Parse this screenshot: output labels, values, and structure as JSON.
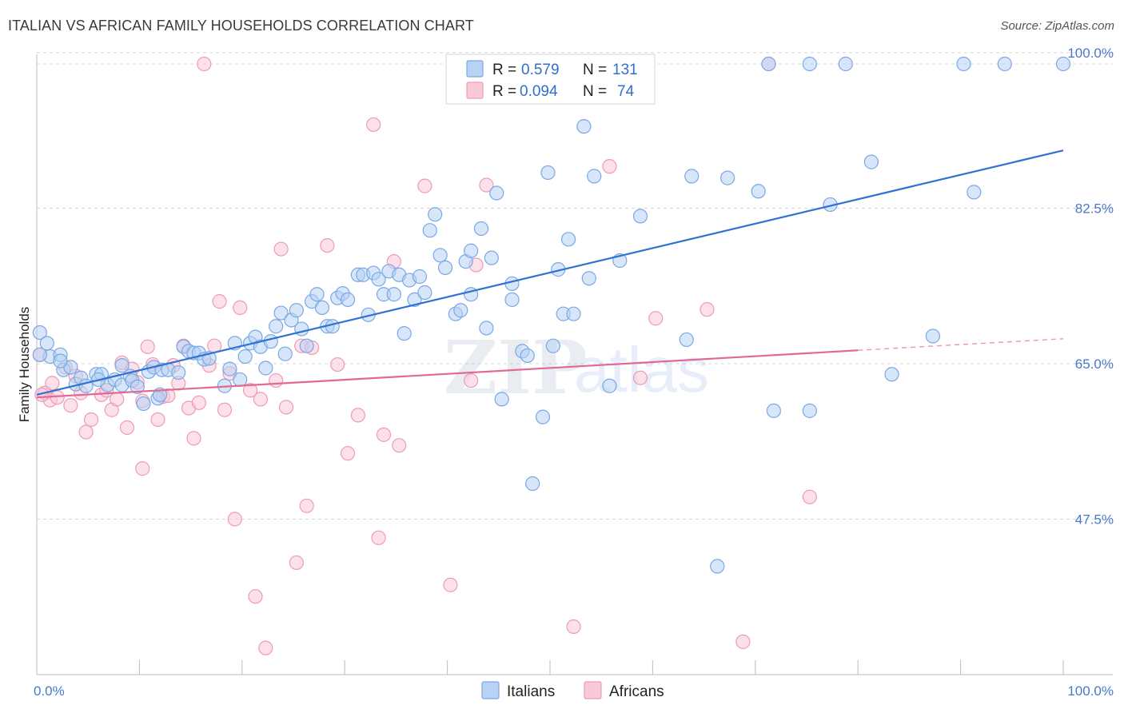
{
  "title": "ITALIAN VS AFRICAN FAMILY HOUSEHOLDS CORRELATION CHART",
  "source": "Source: ZipAtlas.com",
  "watermark": {
    "zip": "ZIP",
    "atlas": "atlas"
  },
  "colors": {
    "italian_fill": "#b7d2f3",
    "italian_stroke": "#7aa8e6",
    "italian_line": "#2f72d2",
    "african_fill": "#f9c9d8",
    "african_stroke": "#ee9bb6",
    "african_line": "#e06a93",
    "grid": "#d8d8d8",
    "tick_text": "#4a78c8"
  },
  "legend": {
    "rows": [
      {
        "r_label": "R =",
        "r_value": "0.579",
        "n_label": "N =",
        "n_value": "131"
      },
      {
        "r_label": "R =",
        "r_value": "0.094",
        "n_label": "N =",
        "n_value": "74"
      }
    ]
  },
  "chart_data": {
    "type": "scatter",
    "title": "ITALIAN VS AFRICAN FAMILY HOUSEHOLDS CORRELATION CHART",
    "xlabel": "",
    "ylabel": "Family Households",
    "xlim": [
      0,
      100
    ],
    "ylim": [
      30,
      100
    ],
    "x_tick_labels": [
      "0.0%",
      "100.0%"
    ],
    "y_ticks": [
      47.5,
      65.0,
      82.5,
      100.0
    ],
    "y_tick_labels": [
      "47.5%",
      "65.0%",
      "82.5%",
      "100.0%"
    ],
    "grid": true,
    "legend_position": "top-center",
    "series": [
      {
        "name": "Italians",
        "r": 0.579,
        "n": 131,
        "trend": {
          "x": [
            0,
            100
          ],
          "y": [
            61.5,
            89.0
          ]
        },
        "points": [
          [
            0.3,
            68.5
          ],
          [
            1,
            67.3
          ],
          [
            1.3,
            65.8
          ],
          [
            2.3,
            66.0
          ],
          [
            2.6,
            64.3
          ],
          [
            3.3,
            64.6
          ],
          [
            3.8,
            62.7
          ],
          [
            4.3,
            63.4
          ],
          [
            4.8,
            62.5
          ],
          [
            5.8,
            63.8
          ],
          [
            6.3,
            63.8
          ],
          [
            6.9,
            62.6
          ],
          [
            7.6,
            63.2
          ],
          [
            8.3,
            62.6
          ],
          [
            8.3,
            64.8
          ],
          [
            9.1,
            63.6
          ],
          [
            9.3,
            63.1
          ],
          [
            9.8,
            62.4
          ],
          [
            10.4,
            60.5
          ],
          [
            10.9,
            64.1
          ],
          [
            11.4,
            64.6
          ],
          [
            11.8,
            61.1
          ],
          [
            12.2,
            64.3
          ],
          [
            12.8,
            64.3
          ],
          [
            13.8,
            64.0
          ],
          [
            14.3,
            66.9
          ],
          [
            14.8,
            66.4
          ],
          [
            15.3,
            66.2
          ],
          [
            15.8,
            66.2
          ],
          [
            16.3,
            65.5
          ],
          [
            16.8,
            65.6
          ],
          [
            18.3,
            62.5
          ],
          [
            18.8,
            64.4
          ],
          [
            19.3,
            67.3
          ],
          [
            19.8,
            63.2
          ],
          [
            20.3,
            65.8
          ],
          [
            20.8,
            67.3
          ],
          [
            21.3,
            68.0
          ],
          [
            21.8,
            66.9
          ],
          [
            22.3,
            64.5
          ],
          [
            22.8,
            67.5
          ],
          [
            23.3,
            69.2
          ],
          [
            23.8,
            70.7
          ],
          [
            24.2,
            66.1
          ],
          [
            24.8,
            69.9
          ],
          [
            25.3,
            71.0
          ],
          [
            25.8,
            68.9
          ],
          [
            26.3,
            67.0
          ],
          [
            26.8,
            72.0
          ],
          [
            27.3,
            72.8
          ],
          [
            27.8,
            71.3
          ],
          [
            28.3,
            69.2
          ],
          [
            28.8,
            69.2
          ],
          [
            29.3,
            72.4
          ],
          [
            29.8,
            72.9
          ],
          [
            30.3,
            72.2
          ],
          [
            31.3,
            75.0
          ],
          [
            31.8,
            75.0
          ],
          [
            32.3,
            70.5
          ],
          [
            32.8,
            75.2
          ],
          [
            33.3,
            74.5
          ],
          [
            33.8,
            72.8
          ],
          [
            34.3,
            75.4
          ],
          [
            34.8,
            72.8
          ],
          [
            35.3,
            75.0
          ],
          [
            35.8,
            68.4
          ],
          [
            36.3,
            74.4
          ],
          [
            36.8,
            72.2
          ],
          [
            37.3,
            74.8
          ],
          [
            37.8,
            73.0
          ],
          [
            38.3,
            80.0
          ],
          [
            38.8,
            81.8
          ],
          [
            39.3,
            77.2
          ],
          [
            39.8,
            75.8
          ],
          [
            40.8,
            70.6
          ],
          [
            41.3,
            71.0
          ],
          [
            41.8,
            76.5
          ],
          [
            42.3,
            72.8
          ],
          [
            42.3,
            77.7
          ],
          [
            43.3,
            80.2
          ],
          [
            43.8,
            69.0
          ],
          [
            44.3,
            76.9
          ],
          [
            44.8,
            84.2
          ],
          [
            45.3,
            61.0
          ],
          [
            46.3,
            74.0
          ],
          [
            46.3,
            72.2
          ],
          [
            47.3,
            66.4
          ],
          [
            47.8,
            65.9
          ],
          [
            48.3,
            51.5
          ],
          [
            49.3,
            59.0
          ],
          [
            49.8,
            86.5
          ],
          [
            50.3,
            67.0
          ],
          [
            50.8,
            75.6
          ],
          [
            51.3,
            70.6
          ],
          [
            51.8,
            79.0
          ],
          [
            52.3,
            70.6
          ],
          [
            53.3,
            91.7
          ],
          [
            53.8,
            74.6
          ],
          [
            54.3,
            86.1
          ],
          [
            55.3,
            100.0
          ],
          [
            55.8,
            62.5
          ],
          [
            56.8,
            76.6
          ],
          [
            58.8,
            81.6
          ],
          [
            63.3,
            67.7
          ],
          [
            63.8,
            86.1
          ],
          [
            66.3,
            42.2
          ],
          [
            67.3,
            85.9
          ],
          [
            70.3,
            84.4
          ],
          [
            71.3,
            100.0
          ],
          [
            71.8,
            59.7
          ],
          [
            75.3,
            59.7
          ],
          [
            75.3,
            100.0
          ],
          [
            77.3,
            82.9
          ],
          [
            78.8,
            100.0
          ],
          [
            81.3,
            87.7
          ],
          [
            83.3,
            63.8
          ],
          [
            87.3,
            68.1
          ],
          [
            90.3,
            100.0
          ],
          [
            91.3,
            84.3
          ],
          [
            94.3,
            100.0
          ],
          [
            100.0,
            100.0
          ],
          [
            0.3,
            66.0
          ],
          [
            2.3,
            65.3
          ],
          [
            6.0,
            63.2
          ],
          [
            12.0,
            61.5
          ]
        ]
      },
      {
        "name": "Africans",
        "r": 0.094,
        "n": 74,
        "trend": {
          "x": [
            0,
            80
          ],
          "y": [
            61.2,
            66.5
          ],
          "dashed_to": {
            "x": 100,
            "y": 67.8
          }
        },
        "points": [
          [
            0.3,
            66.0
          ],
          [
            0.8,
            61.7
          ],
          [
            1.3,
            60.9
          ],
          [
            2.0,
            61.2
          ],
          [
            2.8,
            64.6
          ],
          [
            3.3,
            60.3
          ],
          [
            4.3,
            61.7
          ],
          [
            4.8,
            57.3
          ],
          [
            5.3,
            58.7
          ],
          [
            6.3,
            61.5
          ],
          [
            6.8,
            62.0
          ],
          [
            7.3,
            59.8
          ],
          [
            7.8,
            61.0
          ],
          [
            8.3,
            65.1
          ],
          [
            8.8,
            57.8
          ],
          [
            9.3,
            64.4
          ],
          [
            10.3,
            60.8
          ],
          [
            10.3,
            53.2
          ],
          [
            10.8,
            66.9
          ],
          [
            11.3,
            64.9
          ],
          [
            11.8,
            58.7
          ],
          [
            12.3,
            61.3
          ],
          [
            12.8,
            61.4
          ],
          [
            13.8,
            62.8
          ],
          [
            14.3,
            67.0
          ],
          [
            14.8,
            60.0
          ],
          [
            15.3,
            56.6
          ],
          [
            15.8,
            60.6
          ],
          [
            16.3,
            100.0
          ],
          [
            16.8,
            64.8
          ],
          [
            17.3,
            67.0
          ],
          [
            17.8,
            72.0
          ],
          [
            18.3,
            59.8
          ],
          [
            18.8,
            63.9
          ],
          [
            19.3,
            47.5
          ],
          [
            19.8,
            71.3
          ],
          [
            20.8,
            62.0
          ],
          [
            21.3,
            38.8
          ],
          [
            21.8,
            61.0
          ],
          [
            22.3,
            33.0
          ],
          [
            23.3,
            63.1
          ],
          [
            23.8,
            77.9
          ],
          [
            24.3,
            60.1
          ],
          [
            25.3,
            42.6
          ],
          [
            25.8,
            67.0
          ],
          [
            26.3,
            49.0
          ],
          [
            26.8,
            66.8
          ],
          [
            28.3,
            78.3
          ],
          [
            29.3,
            64.9
          ],
          [
            30.3,
            54.9
          ],
          [
            31.3,
            59.2
          ],
          [
            32.8,
            91.9
          ],
          [
            33.3,
            45.4
          ],
          [
            33.8,
            57.0
          ],
          [
            34.8,
            76.5
          ],
          [
            35.3,
            55.8
          ],
          [
            37.8,
            85.0
          ],
          [
            40.3,
            40.1
          ],
          [
            42.3,
            63.1
          ],
          [
            42.8,
            76.1
          ],
          [
            43.8,
            85.1
          ],
          [
            52.3,
            35.4
          ],
          [
            55.8,
            87.2
          ],
          [
            58.8,
            63.4
          ],
          [
            60.3,
            70.1
          ],
          [
            65.3,
            71.1
          ],
          [
            68.8,
            33.7
          ],
          [
            71.3,
            100.0
          ],
          [
            75.3,
            50.0
          ],
          [
            0.5,
            61.5
          ],
          [
            1.5,
            62.8
          ],
          [
            3.8,
            63.6
          ],
          [
            9.8,
            62.9
          ],
          [
            13.3,
            64.8
          ]
        ]
      }
    ]
  }
}
